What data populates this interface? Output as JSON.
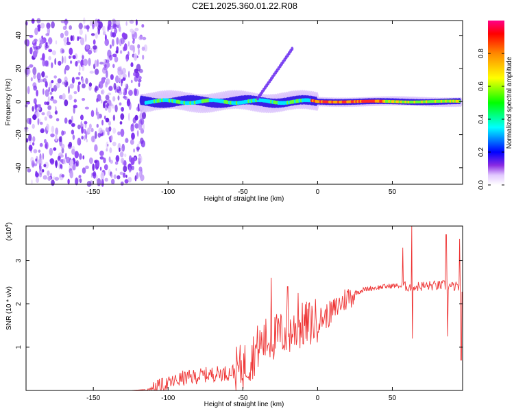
{
  "title": "C2E1.2025.360.01.22.R08",
  "chart_data": [
    {
      "type": "heatmap",
      "name": "spectrogram",
      "xlabel": "Height of straight line (km)",
      "ylabel": "Frequency (Hz)",
      "xlim": [
        -195,
        97
      ],
      "ylim": [
        -50,
        49
      ],
      "xticks": [
        "-150",
        "-100",
        "-50",
        "0",
        "50"
      ],
      "xtick_values": [
        -150,
        -100,
        -50,
        0,
        50
      ],
      "yticks": [
        "40",
        "20",
        "0",
        "-20",
        "-40"
      ],
      "ytick_values": [
        40,
        20,
        0,
        -20,
        -40
      ],
      "noise_region_x": [
        -195,
        -115
      ],
      "signal_line_hz": 0,
      "colorbar": {
        "label": "Normalized spectral amplitude",
        "range": [
          0,
          1
        ],
        "ticks": [
          "0.0",
          "0.2",
          "0.4",
          "0.6",
          "0.8"
        ],
        "tick_values": [
          0.0,
          0.2,
          0.4,
          0.6,
          0.8
        ],
        "colors": [
          "#f2e6ff",
          "#8a2be2",
          "#0000ff",
          "#00ffff",
          "#00ff00",
          "#ffff00",
          "#ff8800",
          "#ff0000",
          "#ff00aa"
        ]
      }
    },
    {
      "type": "line",
      "name": "snr",
      "xlabel": "Height of straight line (km)",
      "ylabel": "SNR (10 * v/v)",
      "scale_label": "(x10",
      "scale_exp": "4",
      "scale_close": ")",
      "xlim": [
        -195,
        97
      ],
      "ylim": [
        0,
        3.8
      ],
      "xticks": [
        "-150",
        "-100",
        "-50",
        "0",
        "50"
      ],
      "xtick_values": [
        -150,
        -100,
        -50,
        0,
        50
      ],
      "yticks": [
        "1",
        "2",
        "3"
      ],
      "ytick_values": [
        1,
        2,
        3
      ],
      "color": "#ee3333",
      "series": [
        {
          "name": "SNR",
          "x": [
            -195,
            -180,
            -160,
            -140,
            -125,
            -115,
            -110,
            -105,
            -100,
            -95,
            -90,
            -85,
            -80,
            -75,
            -70,
            -65,
            -60,
            -55,
            -50,
            -45,
            -40,
            -35,
            -30,
            -25,
            -20,
            -15,
            -10,
            -5,
            0,
            5,
            10,
            15,
            20,
            25,
            30,
            35,
            40,
            45,
            50,
            55,
            60,
            65,
            70,
            75,
            80,
            85,
            90,
            95,
            97
          ],
          "y": [
            0.0,
            0.0,
            0.0,
            0.0,
            0.0,
            0.02,
            0.05,
            0.1,
            0.15,
            0.22,
            0.28,
            0.3,
            0.33,
            0.36,
            0.38,
            0.4,
            0.4,
            0.45,
            0.55,
            0.72,
            1.0,
            1.15,
            1.2,
            1.3,
            1.32,
            1.42,
            1.5,
            1.55,
            1.62,
            1.7,
            1.82,
            2.0,
            2.15,
            2.25,
            2.32,
            2.36,
            2.38,
            2.4,
            2.42,
            2.42,
            2.4,
            2.4,
            2.41,
            2.42,
            2.42,
            2.43,
            2.4,
            2.4,
            2.4
          ]
        }
      ],
      "spikes": [
        {
          "x": -31,
          "y": 2.6
        },
        {
          "x": -20,
          "y": 2.4
        },
        {
          "x": -13,
          "y": 2.25
        },
        {
          "x": 57,
          "y": 3.3
        },
        {
          "x": 63,
          "y": 3.8
        },
        {
          "x": 63.5,
          "y": 1.2
        },
        {
          "x": 86,
          "y": 3.6
        },
        {
          "x": 87,
          "y": 1.25
        },
        {
          "x": 95,
          "y": 3.5
        },
        {
          "x": 96,
          "y": 0.7
        }
      ]
    }
  ]
}
